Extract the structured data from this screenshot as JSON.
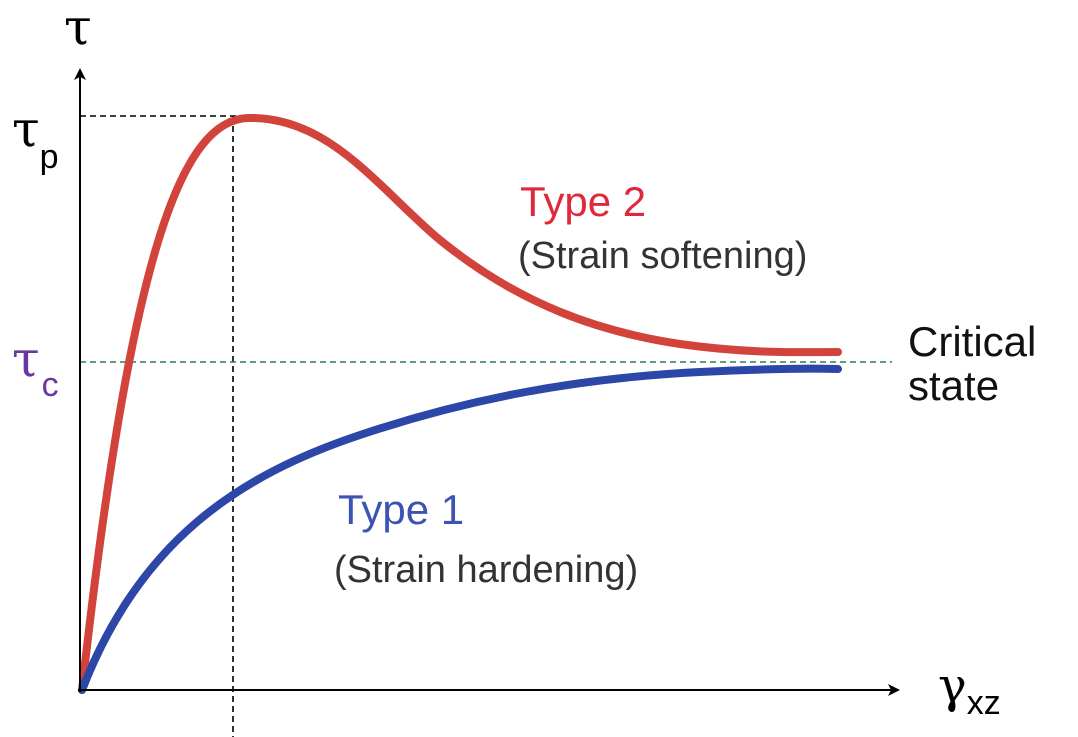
{
  "chart_data": {
    "type": "line",
    "title": "",
    "xlabel": {
      "main": "γ",
      "sub": "xz"
    },
    "ylabel": "τ",
    "y_ticks": [
      {
        "main": "τ",
        "sub": "p"
      },
      {
        "main": "τ",
        "sub": "c"
      }
    ],
    "reference_line_label": "Critical state",
    "reference_line_label_lines": [
      "Critical",
      "state"
    ],
    "series": [
      {
        "name": "Type 2",
        "subtitle": "(Strain softening)",
        "behavior": "rises steeply to peak τp, then softens toward τc"
      },
      {
        "name": "Type 1",
        "subtitle": "(Strain hardening)",
        "behavior": "rises monotonically and approaches τc"
      }
    ],
    "grid": false,
    "colors": {
      "type2": "#d2443b",
      "type1": "#2d47a8",
      "tau_c_label": "#6a37a0",
      "type1_label": "#3b54b3",
      "type2_label": "#e0283c",
      "critical_line": "#2e7d4f",
      "axis": "#000000",
      "text": "#222222"
    }
  }
}
